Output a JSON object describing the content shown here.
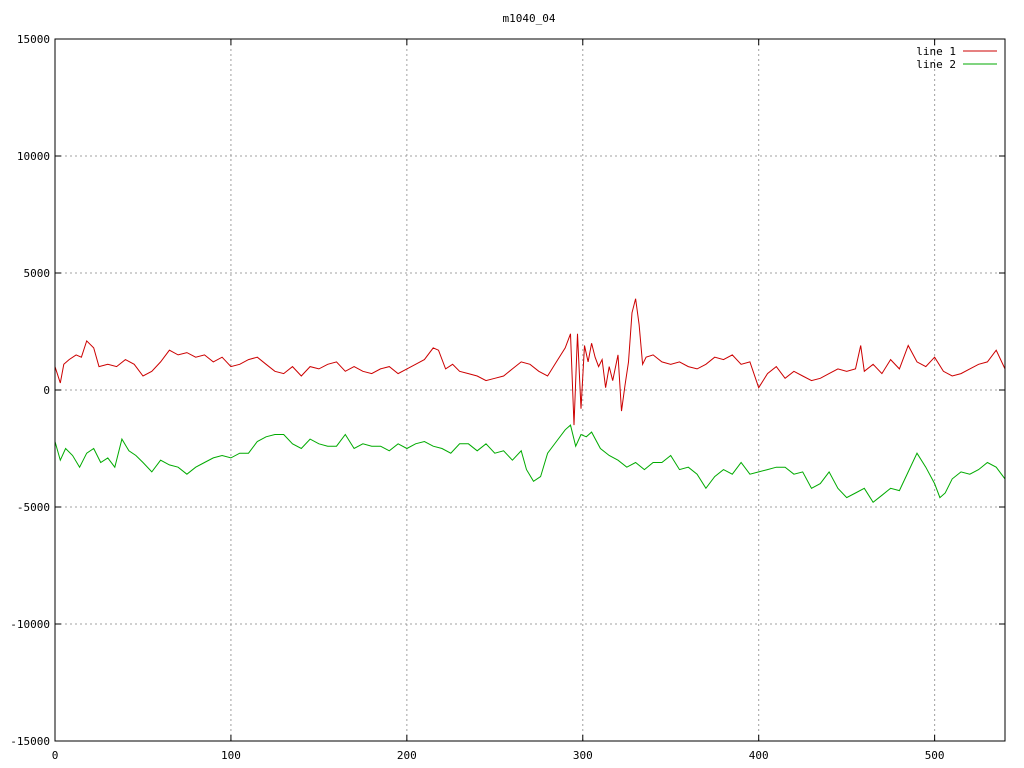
{
  "chart_data": {
    "type": "line",
    "title": "m1040_04",
    "xlabel": "",
    "ylabel": "",
    "xlim": [
      0,
      540
    ],
    "ylim": [
      -15000,
      15000
    ],
    "xticks": [
      0,
      100,
      200,
      300,
      400,
      500
    ],
    "yticks": [
      -15000,
      -10000,
      -5000,
      0,
      5000,
      10000,
      15000
    ],
    "grid": true,
    "legend_position": "top-right",
    "series": [
      {
        "name": "line 1",
        "color": "#cc0000",
        "x": [
          0,
          3,
          5,
          8,
          12,
          15,
          18,
          22,
          25,
          30,
          35,
          40,
          45,
          50,
          55,
          60,
          65,
          70,
          75,
          80,
          85,
          90,
          95,
          100,
          105,
          110,
          115,
          120,
          125,
          130,
          135,
          140,
          145,
          150,
          155,
          160,
          165,
          170,
          175,
          180,
          185,
          190,
          195,
          200,
          205,
          210,
          215,
          218,
          222,
          226,
          230,
          235,
          240,
          245,
          250,
          255,
          260,
          265,
          270,
          275,
          280,
          285,
          290,
          293,
          295,
          297,
          299,
          301,
          303,
          305,
          307,
          309,
          311,
          313,
          315,
          317,
          320,
          322,
          324,
          326,
          328,
          330,
          332,
          334,
          336,
          340,
          345,
          350,
          355,
          360,
          365,
          370,
          375,
          380,
          385,
          390,
          395,
          400,
          405,
          410,
          415,
          420,
          425,
          430,
          435,
          440,
          445,
          450,
          455,
          458,
          460,
          465,
          470,
          475,
          480,
          485,
          490,
          495,
          500,
          505,
          510,
          515,
          520,
          525,
          530,
          535,
          540
        ],
        "values": [
          1000,
          300,
          1100,
          1300,
          1500,
          1400,
          2100,
          1800,
          1000,
          1100,
          1000,
          1300,
          1100,
          600,
          800,
          1200,
          1700,
          1500,
          1600,
          1400,
          1500,
          1200,
          1400,
          1000,
          1100,
          1300,
          1400,
          1100,
          800,
          700,
          1000,
          600,
          1000,
          900,
          1100,
          1200,
          800,
          1000,
          800,
          700,
          900,
          1000,
          700,
          900,
          1100,
          1300,
          1800,
          1700,
          900,
          1100,
          800,
          700,
          600,
          400,
          500,
          600,
          900,
          1200,
          1100,
          800,
          600,
          1200,
          1800,
          2400,
          -1500,
          2400,
          -800,
          1900,
          1200,
          2000,
          1400,
          1000,
          1300,
          100,
          1000,
          400,
          1500,
          -900,
          200,
          1200,
          3300,
          3900,
          2800,
          1100,
          1400,
          1500,
          1200,
          1100,
          1200,
          1000,
          900,
          1100,
          1400,
          1300,
          1500,
          1100,
          1200,
          100,
          700,
          1000,
          500,
          800,
          600,
          400,
          500,
          700,
          900,
          800,
          900,
          1900,
          800,
          1100,
          700,
          1300,
          900,
          1900,
          1200,
          1000,
          1400,
          800,
          600,
          700,
          900,
          1100,
          1200,
          1700,
          900
        ]
      },
      {
        "name": "line 2",
        "color": "#00aa00",
        "x": [
          0,
          3,
          6,
          10,
          14,
          18,
          22,
          26,
          30,
          34,
          38,
          42,
          46,
          50,
          55,
          60,
          65,
          70,
          75,
          80,
          85,
          90,
          95,
          100,
          105,
          110,
          115,
          120,
          125,
          130,
          135,
          140,
          145,
          150,
          155,
          160,
          165,
          170,
          175,
          180,
          185,
          190,
          195,
          200,
          205,
          210,
          215,
          220,
          225,
          230,
          235,
          240,
          245,
          250,
          255,
          260,
          265,
          268,
          272,
          276,
          280,
          285,
          290,
          293,
          296,
          299,
          302,
          305,
          310,
          315,
          320,
          325,
          330,
          335,
          340,
          345,
          350,
          355,
          360,
          365,
          370,
          375,
          380,
          385,
          390,
          395,
          400,
          405,
          410,
          415,
          420,
          425,
          430,
          435,
          440,
          445,
          450,
          455,
          460,
          465,
          470,
          475,
          480,
          485,
          490,
          495,
          500,
          503,
          506,
          510,
          515,
          520,
          525,
          530,
          535,
          540
        ],
        "values": [
          -2200,
          -3000,
          -2500,
          -2800,
          -3300,
          -2700,
          -2500,
          -3100,
          -2900,
          -3300,
          -2100,
          -2600,
          -2800,
          -3100,
          -3500,
          -3000,
          -3200,
          -3300,
          -3600,
          -3300,
          -3100,
          -2900,
          -2800,
          -2900,
          -2700,
          -2700,
          -2200,
          -2000,
          -1900,
          -1900,
          -2300,
          -2500,
          -2100,
          -2300,
          -2400,
          -2400,
          -1900,
          -2500,
          -2300,
          -2400,
          -2400,
          -2600,
          -2300,
          -2500,
          -2300,
          -2200,
          -2400,
          -2500,
          -2700,
          -2300,
          -2300,
          -2600,
          -2300,
          -2700,
          -2600,
          -3000,
          -2600,
          -3400,
          -3900,
          -3700,
          -2700,
          -2200,
          -1700,
          -1500,
          -2400,
          -1900,
          -2000,
          -1800,
          -2500,
          -2800,
          -3000,
          -3300,
          -3100,
          -3400,
          -3100,
          -3100,
          -2800,
          -3400,
          -3300,
          -3600,
          -4200,
          -3700,
          -3400,
          -3600,
          -3100,
          -3600,
          -3500,
          -3400,
          -3300,
          -3300,
          -3600,
          -3500,
          -4200,
          -4000,
          -3500,
          -4200,
          -4600,
          -4400,
          -4200,
          -4800,
          -4500,
          -4200,
          -4300,
          -3500,
          -2700,
          -3300,
          -4000,
          -4600,
          -4400,
          -3800,
          -3500,
          -3600,
          -3400,
          -3100,
          -3300,
          -3800
        ]
      }
    ]
  }
}
